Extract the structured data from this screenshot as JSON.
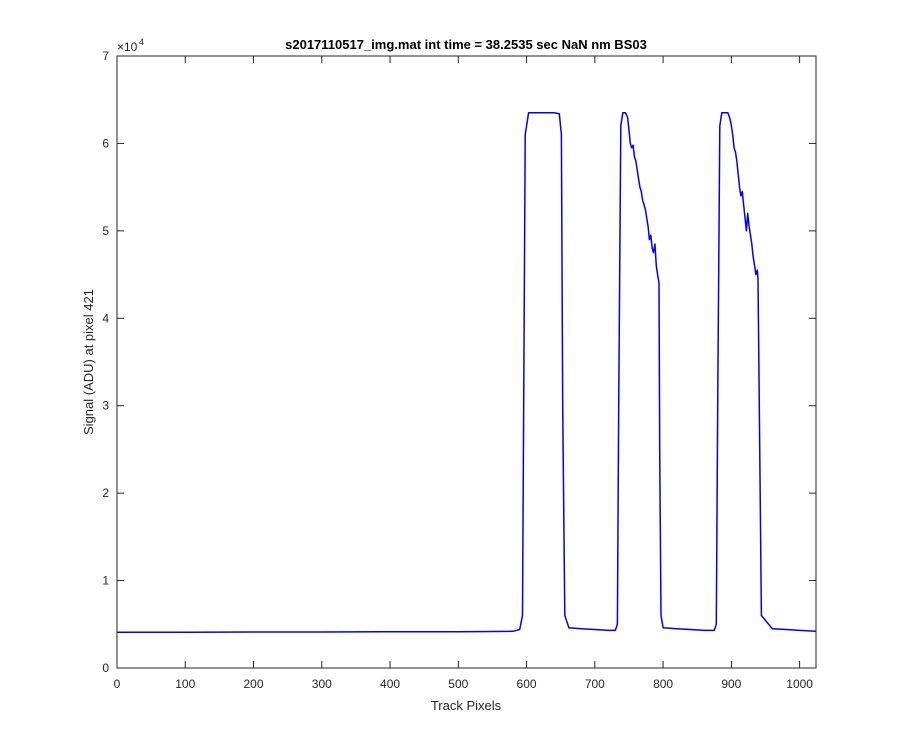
{
  "chart_data": {
    "type": "line",
    "title": "s2017110517_img.mat int time = 38.2535 sec  NaN nm BS03",
    "xlabel": "Track Pixels",
    "ylabel": "Signal (ADU) at pixel 421",
    "xlim": [
      0,
      1024
    ],
    "ylim": [
      0,
      70000
    ],
    "y_exponent_label": "×10",
    "y_exponent_power": "4",
    "x_ticks": [
      0,
      100,
      200,
      300,
      400,
      500,
      600,
      700,
      800,
      900,
      1000
    ],
    "x_tick_labels": [
      "0",
      "100",
      "200",
      "300",
      "400",
      "500",
      "600",
      "700",
      "800",
      "900",
      "1000"
    ],
    "y_ticks": [
      0,
      10000,
      20000,
      30000,
      40000,
      50000,
      60000,
      70000
    ],
    "y_tick_labels": [
      "0",
      "1",
      "2",
      "3",
      "4",
      "5",
      "6",
      "7"
    ],
    "grid": false,
    "series": [
      {
        "color": "#0000ff",
        "x": [
          0,
          100,
          200,
          300,
          400,
          500,
          580,
          590,
          594,
          598,
          603,
          610,
          620,
          640,
          648,
          651,
          653,
          656,
          662,
          680,
          700,
          720,
          730,
          733,
          735,
          738,
          741,
          745,
          748,
          750,
          752,
          754,
          756,
          758,
          760,
          762,
          764,
          766,
          768,
          770,
          772,
          774,
          776,
          778,
          780,
          782,
          784,
          786,
          788,
          790,
          792,
          794,
          795,
          797,
          800,
          820,
          840,
          860,
          875,
          878,
          880,
          883,
          886,
          890,
          895,
          898,
          900,
          902,
          904,
          906,
          908,
          910,
          912,
          914,
          916,
          918,
          920,
          922,
          924,
          926,
          928,
          930,
          932,
          934,
          936,
          938,
          939,
          941,
          944,
          960,
          980,
          1000,
          1024
        ],
        "y": [
          4100,
          4100,
          4120,
          4120,
          4150,
          4150,
          4200,
          4400,
          6000,
          61000,
          63500,
          63500,
          63500,
          63500,
          63400,
          61000,
          30000,
          6000,
          4600,
          4500,
          4400,
          4300,
          4300,
          5000,
          30000,
          62000,
          63500,
          63500,
          63000,
          61500,
          60000,
          59500,
          59800,
          58500,
          58000,
          57000,
          56000,
          55000,
          54500,
          53500,
          53000,
          52500,
          51500,
          50500,
          49000,
          49500,
          48000,
          47500,
          48500,
          46000,
          45000,
          44000,
          25000,
          6000,
          4600,
          4500,
          4400,
          4300,
          4300,
          5000,
          30000,
          62000,
          63500,
          63500,
          63500,
          62800,
          62000,
          61000,
          59500,
          59000,
          58000,
          56500,
          55000,
          54000,
          54500,
          53000,
          51500,
          50000,
          52000,
          50500,
          49500,
          48500,
          47000,
          46000,
          45000,
          45500,
          44500,
          30000,
          6000,
          4500,
          4400,
          4300,
          4200
        ]
      }
    ]
  }
}
